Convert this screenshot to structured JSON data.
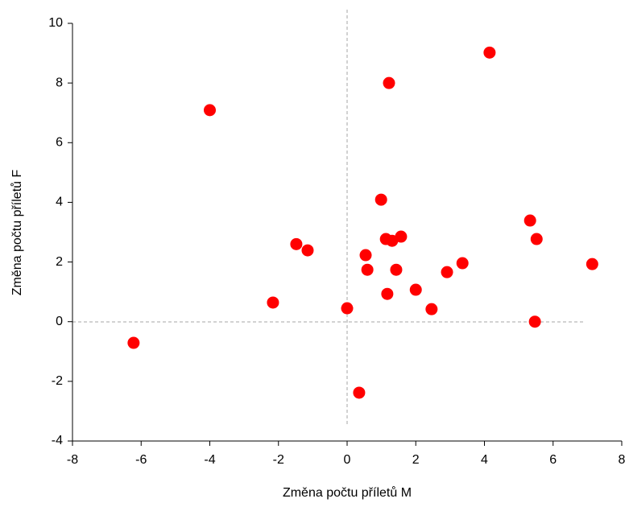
{
  "chart_data": {
    "type": "scatter",
    "x_label": "Změna počtu příletů M",
    "y_label": "Změna počtu příletů F",
    "color": "#ff0000",
    "x": [
      -6.22,
      -4.0,
      -2.16,
      -1.48,
      -1.15,
      0.0,
      0.35,
      0.54,
      0.59,
      0.99,
      1.13,
      1.17,
      1.22,
      1.31,
      1.43,
      1.57,
      2.0,
      2.46,
      2.91,
      3.36,
      4.15,
      5.33,
      5.47,
      5.52,
      7.14
    ],
    "values": [
      -0.71,
      7.09,
      0.64,
      2.6,
      2.39,
      0.45,
      -2.38,
      2.23,
      1.74,
      4.09,
      2.77,
      0.93,
      8.0,
      2.71,
      1.74,
      2.85,
      1.07,
      0.42,
      1.66,
      1.96,
      9.02,
      3.39,
      0.0,
      2.77,
      1.93
    ],
    "xlim": [
      -8,
      8
    ],
    "xticks": [
      -8,
      -6,
      -4,
      -2,
      0,
      2,
      4,
      6,
      8
    ],
    "ylim": [
      -4,
      10
    ],
    "yticks": [
      -4,
      -2,
      0,
      2,
      4,
      6,
      8,
      10
    ]
  }
}
